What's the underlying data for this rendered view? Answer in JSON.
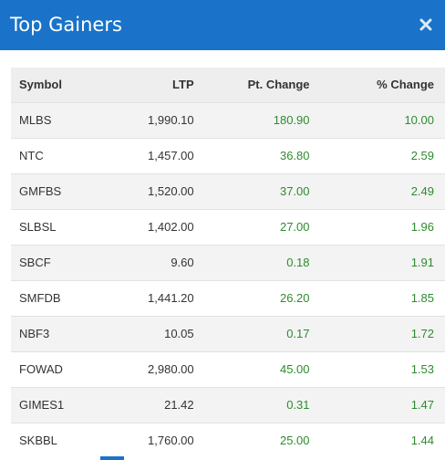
{
  "dialog": {
    "title": "Top Gainers",
    "close_icon": "close-icon"
  },
  "table": {
    "columns": [
      "Symbol",
      "LTP",
      "Pt. Change",
      "% Change"
    ],
    "rows": [
      {
        "symbol": "MLBS",
        "ltp": "1,990.10",
        "pt_change": "180.90",
        "pct_change": "10.00"
      },
      {
        "symbol": "NTC",
        "ltp": "1,457.00",
        "pt_change": "36.80",
        "pct_change": "2.59"
      },
      {
        "symbol": "GMFBS",
        "ltp": "1,520.00",
        "pt_change": "37.00",
        "pct_change": "2.49"
      },
      {
        "symbol": "SLBSL",
        "ltp": "1,402.00",
        "pt_change": "27.00",
        "pct_change": "1.96"
      },
      {
        "symbol": "SBCF",
        "ltp": "9.60",
        "pt_change": "0.18",
        "pct_change": "1.91"
      },
      {
        "symbol": "SMFDB",
        "ltp": "1,441.20",
        "pt_change": "26.20",
        "pct_change": "1.85"
      },
      {
        "symbol": "NBF3",
        "ltp": "10.05",
        "pt_change": "0.17",
        "pct_change": "1.72"
      },
      {
        "symbol": "FOWAD",
        "ltp": "2,980.00",
        "pt_change": "45.00",
        "pct_change": "1.53"
      },
      {
        "symbol": "GIMES1",
        "ltp": "21.42",
        "pt_change": "0.31",
        "pct_change": "1.47"
      },
      {
        "symbol": "SKBBL",
        "ltp": "1,760.00",
        "pt_change": "25.00",
        "pct_change": "1.44"
      }
    ]
  },
  "colors": {
    "header_bg": "#1a73c8",
    "positive": "#2e8b2e",
    "row_alt": "#f3f3f3"
  }
}
